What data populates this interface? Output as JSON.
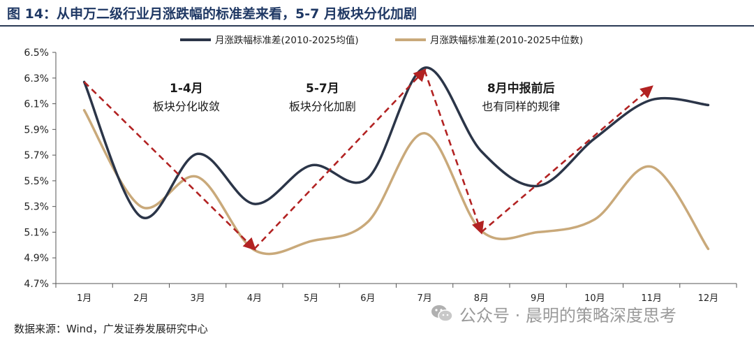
{
  "figure_title": "图 14：从申万二级行业月涨跌幅的标准差来看，5-7 月板块分化加剧",
  "source_note": "数据来源：Wind，广发证券发展研究中心",
  "watermark": {
    "icon": "wechat-icon",
    "text": "公众号 · 晨明的策略深度思考"
  },
  "chart_data": {
    "type": "line",
    "categories": [
      "1月",
      "2月",
      "3月",
      "4月",
      "5月",
      "6月",
      "7月",
      "8月",
      "9月",
      "10月",
      "11月",
      "12月"
    ],
    "ylim": [
      4.7,
      6.5
    ],
    "yticks": [
      "6.5%",
      "6.3%",
      "6.1%",
      "5.9%",
      "5.7%",
      "5.5%",
      "5.3%",
      "5.1%",
      "4.9%",
      "4.7%"
    ],
    "legend_position": "top",
    "grid": false,
    "series": [
      {
        "name": "月涨跌幅标准差(2010-2025均值)",
        "color": "#2b3548",
        "values": [
          6.27,
          5.22,
          5.71,
          5.32,
          5.62,
          5.52,
          6.38,
          5.73,
          5.46,
          5.83,
          6.13,
          6.09
        ]
      },
      {
        "name": "月涨跌幅标准差(2010-2025中位数)",
        "color": "#c9a97a",
        "values": [
          6.05,
          5.3,
          5.53,
          4.96,
          5.03,
          5.18,
          5.87,
          5.11,
          5.1,
          5.2,
          5.61,
          4.97
        ]
      }
    ],
    "arrows": [
      {
        "from": [
          "1月",
          6.27
        ],
        "to": [
          "4月",
          4.97
        ]
      },
      {
        "from": [
          "4月",
          4.97
        ],
        "to": [
          "7月",
          6.36
        ]
      },
      {
        "from": [
          "7月",
          6.36
        ],
        "to": [
          "8月",
          5.1
        ]
      },
      {
        "from": [
          "8月",
          5.1
        ],
        "to": [
          "11月",
          6.23
        ]
      }
    ],
    "arrow_color": "#b22222",
    "annotations": [
      {
        "lines": [
          "1-4月",
          "板块分化收敛"
        ],
        "x": 2.3,
        "y": 6.19
      },
      {
        "lines": [
          "5-7月",
          "板块分化加剧"
        ],
        "x": 4.7,
        "y": 6.19
      },
      {
        "lines": [
          "8月中报前后",
          "也有同样的规律"
        ],
        "x": 8.2,
        "y": 6.19
      }
    ]
  }
}
